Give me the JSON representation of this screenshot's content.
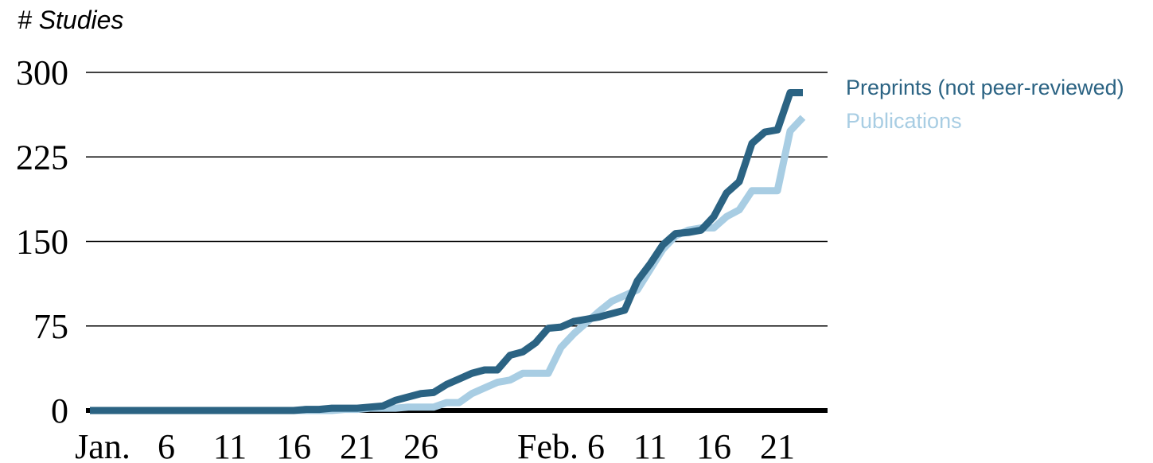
{
  "chart_data": {
    "type": "line",
    "title": "# Studies",
    "categories": [
      null,
      "Jan.",
      null,
      null,
      null,
      null,
      "6",
      null,
      null,
      null,
      null,
      "11",
      null,
      null,
      null,
      null,
      "16",
      null,
      null,
      null,
      null,
      "21",
      null,
      null,
      null,
      null,
      "26",
      null,
      null,
      null,
      null,
      null,
      null,
      null,
      null,
      null,
      null,
      "Feb. 6",
      null,
      null,
      null,
      null,
      null,
      null,
      "11",
      null,
      null,
      null,
      null,
      "16",
      null,
      null,
      null,
      null,
      "21",
      null,
      null
    ],
    "series": [
      {
        "name": "Preprints (not peer-reviewed)",
        "color": "#2b6383",
        "values": [
          0,
          0,
          0,
          0,
          0,
          0,
          0,
          0,
          0,
          0,
          0,
          0,
          0,
          0,
          0,
          0,
          0,
          1,
          1,
          2,
          2,
          2,
          3,
          4,
          9,
          12,
          15,
          16,
          23,
          28,
          33,
          36,
          36,
          49,
          52,
          60,
          73,
          74,
          79,
          81,
          83,
          86,
          89,
          115,
          130,
          147,
          157,
          158,
          160,
          172,
          193,
          203,
          237,
          247,
          249,
          282,
          282
        ]
      },
      {
        "name": "Publications",
        "color": "#a8cde3",
        "values": [
          0,
          0,
          0,
          0,
          0,
          0,
          0,
          0,
          0,
          0,
          0,
          0,
          0,
          0,
          0,
          0,
          0,
          0,
          0,
          0,
          1,
          1,
          2,
          2,
          2,
          3,
          3,
          3,
          7,
          7,
          15,
          20,
          25,
          27,
          33,
          33,
          33,
          56,
          68,
          78,
          88,
          97,
          102,
          107,
          125,
          143,
          155,
          160,
          162,
          162,
          172,
          178,
          195,
          195,
          195,
          248,
          260
        ]
      }
    ],
    "ylim": [
      0,
      300
    ],
    "yticks": [
      0,
      75,
      150,
      225,
      300
    ],
    "grid": true
  }
}
